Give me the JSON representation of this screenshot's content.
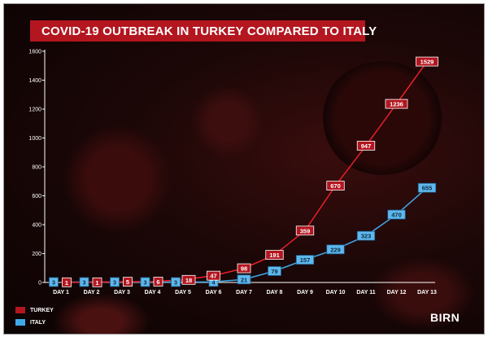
{
  "title": "COVID-19 OUTBREAK IN TURKEY COMPARED TO ITALY",
  "logo": "BIRN",
  "chart_data": {
    "type": "line",
    "title": "COVID-19 OUTBREAK IN TURKEY COMPARED TO ITALY",
    "xlabel": "",
    "ylabel": "",
    "categories": [
      "DAY 1",
      "DAY 2",
      "DAY 3",
      "DAY 4",
      "DAY 5",
      "DAY 6",
      "DAY 7",
      "DAY 8",
      "DAY 9",
      "DAY 10",
      "DAY 11",
      "DAY 12",
      "DAY 13"
    ],
    "ylim": [
      0,
      1600
    ],
    "yticks": [
      0,
      200,
      400,
      600,
      800,
      1000,
      1200,
      1400,
      1600
    ],
    "grid": false,
    "legend_position": "bottom-left",
    "series": [
      {
        "name": "TURKEY",
        "color": "#e8202a",
        "values": [
          1,
          1,
          5,
          6,
          18,
          47,
          98,
          191,
          359,
          670,
          947,
          1236,
          1529
        ]
      },
      {
        "name": "ITALY",
        "color": "#3fa9e8",
        "values": [
          3,
          3,
          3,
          3,
          3,
          4,
          21,
          79,
          157,
          229,
          323,
          470,
          655
        ]
      }
    ]
  }
}
